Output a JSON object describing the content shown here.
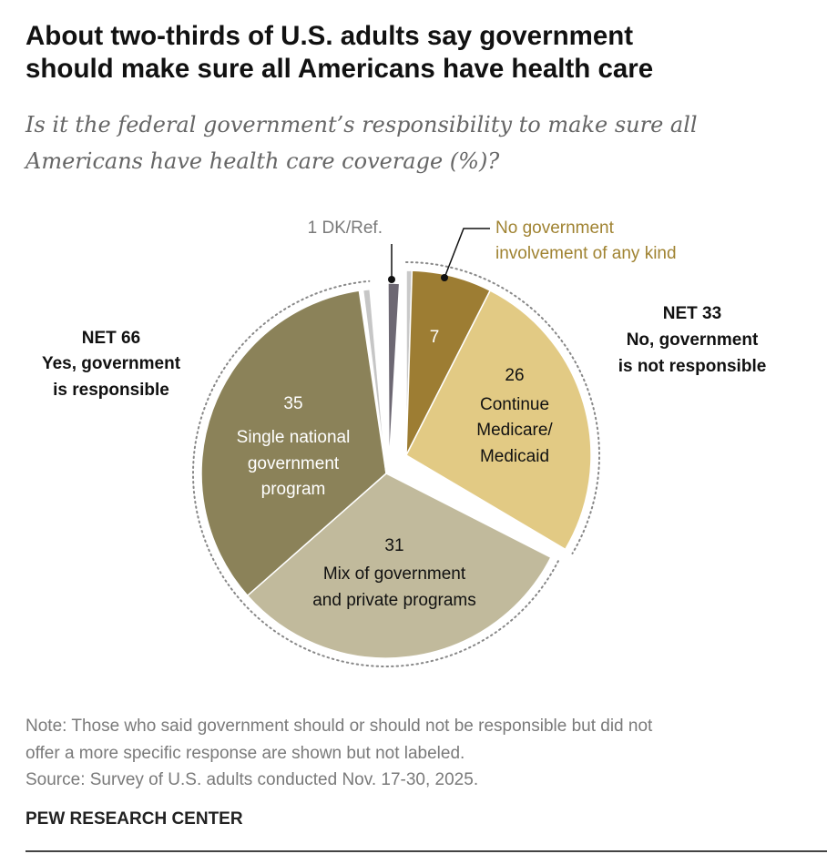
{
  "title": [
    "About two-thirds of U.S. adults say government",
    "should make sure all Americans have health care"
  ],
  "subtitle": [
    "Is it the federal government’s responsibility to make sure all",
    "Americans have health care coverage (%)?"
  ],
  "chart_data": {
    "type": "pie",
    "title": "About two-thirds of U.S. adults say government should make sure all Americans have health care",
    "groups": [
      {
        "name": "NET 66",
        "label": [
          "NET 66",
          "Yes, government",
          "is responsible"
        ],
        "value": 66
      },
      {
        "name": "NET 33",
        "label": [
          "NET 33",
          "No, government",
          "is not responsible"
        ],
        "value": 33
      }
    ],
    "slices": [
      {
        "group": "NET 33",
        "label": "",
        "value": 0.5,
        "labeled": false,
        "color": "#c9c9c9"
      },
      {
        "group": "NET 33",
        "label": "No government involvement of any kind",
        "value": 7,
        "color": "#9d7d33",
        "text": [
          "7"
        ]
      },
      {
        "group": "NET 33",
        "label": "Continue Medicare/Medicaid",
        "value": 26,
        "color": "#e2ca84",
        "text": [
          "26",
          "Continue",
          "Medicare/",
          "Medicaid"
        ]
      },
      {
        "group": "NET 66",
        "label": "Mix of government and private programs",
        "value": 31,
        "color": "#c1ba9c",
        "text": [
          "31",
          "Mix of government",
          "and private programs"
        ]
      },
      {
        "group": "NET 66",
        "label": "Single national government program",
        "value": 35,
        "color": "#8b8259",
        "text": [
          "35",
          "Single national",
          "government",
          "program"
        ]
      },
      {
        "group": "NET 66",
        "label": "",
        "value": 0.6,
        "labeled": false,
        "color": "#c6c6c6"
      },
      {
        "group": "",
        "label": "DK/Ref.",
        "value": 1,
        "color": "#6d6873"
      }
    ],
    "callouts": {
      "dk": "1 DK/Ref.",
      "no_gov": [
        "No government",
        "involvement of any kind"
      ]
    },
    "colors": {
      "callout_no_gov": "#a08332",
      "callout_dk": "#7a7a7a"
    }
  },
  "note": [
    "Note: Those who said government should or should not be responsible but did not",
    "offer a more specific response are shown but not labeled.",
    "Source: Survey of U.S. adults conducted Nov. 17-30, 2025."
  ],
  "brand": "PEW RESEARCH CENTER"
}
